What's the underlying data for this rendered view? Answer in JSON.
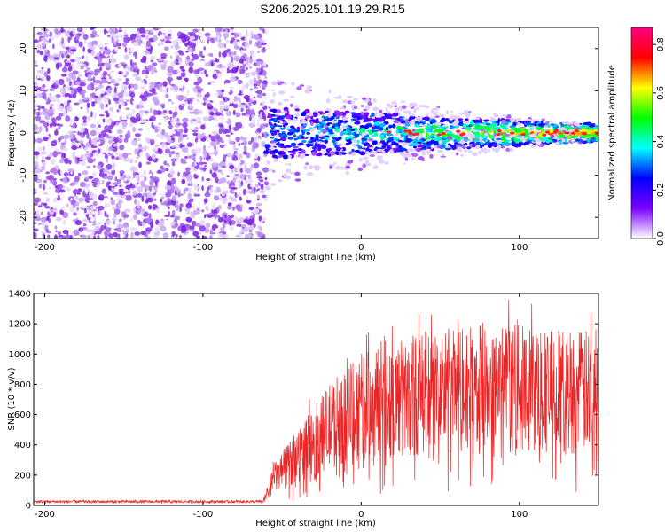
{
  "title": "S206.2025.101.19.29.R15",
  "chart_data": [
    {
      "type": "heatmap",
      "xlabel": "Height of straight line (km)",
      "ylabel": "Frequency (Hz)",
      "xlim": [
        -207,
        150
      ],
      "ylim": [
        -25,
        25
      ],
      "xticks": [
        -200,
        -100,
        0,
        100
      ],
      "yticks": [
        -20,
        -10,
        0,
        10,
        20
      ],
      "noise_region_x": [
        -207,
        -60
      ],
      "signal_band": {
        "x": [
          -60,
          150
        ],
        "center_freq": 0,
        "halfwidth_start": 6,
        "halfwidth_end": 2
      },
      "colorbar": {
        "label": "Normalized spectral amplitude",
        "range": [
          0,
          0.87
        ],
        "ticks": [
          "0.0",
          "0.2",
          "0.4",
          "0.6",
          "0.8"
        ],
        "colors": [
          "#ffffff",
          "#7b00ff",
          "#0000ff",
          "#00ffff",
          "#00ff00",
          "#ffff00",
          "#ff0000",
          "#ff0080"
        ]
      },
      "grid": false
    },
    {
      "type": "line",
      "xlabel": "Height of straight line (km)",
      "ylabel": "SNR (10 * v/v)",
      "xlim": [
        -207,
        150
      ],
      "ylim": [
        0,
        1400
      ],
      "xticks": [
        -200,
        -100,
        0,
        100
      ],
      "yticks": [
        0,
        200,
        400,
        600,
        800,
        1000,
        1200,
        1400
      ],
      "color": "#ee2222",
      "series": [
        {
          "x": [
            -207,
            -180,
            -150,
            -120,
            -90,
            -62,
            -55,
            -50,
            -40,
            -30,
            -20,
            -10,
            0,
            10,
            20,
            30,
            40,
            50,
            60,
            70,
            80,
            90,
            100,
            110,
            120,
            130,
            140,
            150
          ],
          "y": [
            25,
            25,
            25,
            25,
            25,
            25,
            180,
            220,
            330,
            420,
            520,
            600,
            650,
            680,
            700,
            720,
            740,
            760,
            760,
            770,
            770,
            770,
            770,
            760,
            760,
            760,
            750,
            740
          ]
        }
      ],
      "grid": false
    }
  ]
}
